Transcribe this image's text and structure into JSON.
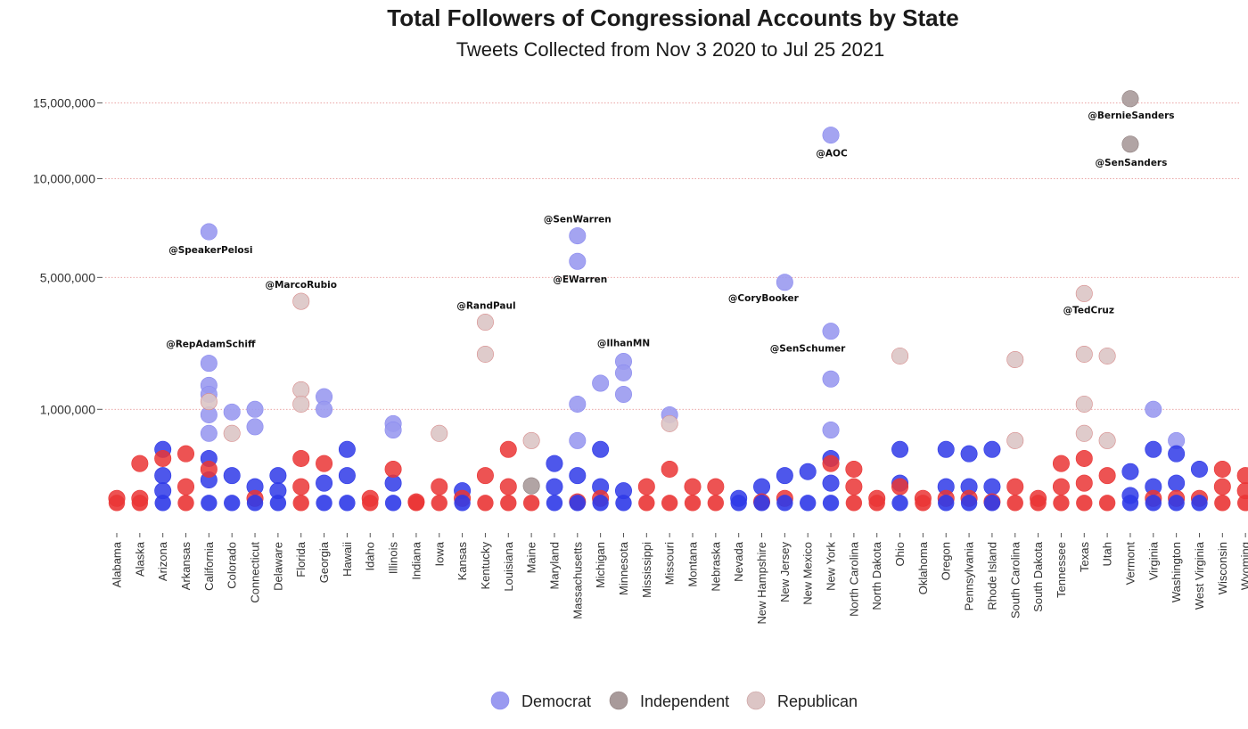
{
  "chart_data": {
    "type": "scatter",
    "title": "Total Followers of Congressional Accounts by State",
    "subtitle": "Tweets Collected from Nov 3 2020 to Jul 25 2021",
    "xlabel": "",
    "ylabel": "",
    "y_ticks": [
      1000000,
      5000000,
      10000000,
      15000000
    ],
    "y_tick_labels": [
      "1,000,000",
      "5,000,000",
      "10,000,000",
      "15,000,000"
    ],
    "y_scale": "sqrt",
    "grid": "horizontal dotted",
    "legend_position": "bottom",
    "categories": [
      "Alabama",
      "Alaska",
      "Arizona",
      "Arkansas",
      "California",
      "Colorado",
      "Connecticut",
      "Delaware",
      "Florida",
      "Georgia",
      "Hawaii",
      "Idaho",
      "Illinois",
      "Indiana",
      "Iowa",
      "Kansas",
      "Kentucky",
      "Louisiana",
      "Maine",
      "Maryland",
      "Massachusetts",
      "Michigan",
      "Minnesota",
      "Mississippi",
      "Missouri",
      "Montana",
      "Nebraska",
      "Nevada",
      "New Hampshire",
      "New Jersey",
      "New Mexico",
      "New York",
      "North Carolina",
      "North Dakota",
      "Ohio",
      "Oklahoma",
      "Oregon",
      "Pennsylvania",
      "Rhode Island",
      "South Carolina",
      "South Dakota",
      "Tennessee",
      "Texas",
      "Utah",
      "Vermont",
      "Virginia",
      "Washington",
      "West Virginia",
      "Wisconsin",
      "Wyoming"
    ],
    "party_colors": {
      "Democrat": "#9a9af0",
      "Independent": "#a89a9a",
      "Republican": "#dcc5c5",
      "Democrat_dense": "#2f3ae8",
      "Republican_dense": "#ea3535"
    },
    "series": [
      {
        "name": "Democrat",
        "points": [
          {
            "state": "Arizona",
            "y": 400000
          },
          {
            "state": "Arizona",
            "y": 150000
          },
          {
            "state": "Arizona",
            "y": 60000
          },
          {
            "state": "California",
            "y": 7100000,
            "label": "@SpeakerPelosi"
          },
          {
            "state": "California",
            "y": 2050000,
            "label": "@RepAdamSchiff"
          },
          {
            "state": "California",
            "y": 1500000
          },
          {
            "state": "California",
            "y": 1300000
          },
          {
            "state": "California",
            "y": 900000
          },
          {
            "state": "California",
            "y": 600000
          },
          {
            "state": "California",
            "y": 300000
          },
          {
            "state": "California",
            "y": 120000
          },
          {
            "state": "Colorado",
            "y": 950000
          },
          {
            "state": "Colorado",
            "y": 150000
          },
          {
            "state": "Connecticut",
            "y": 1000000
          },
          {
            "state": "Connecticut",
            "y": 700000
          },
          {
            "state": "Connecticut",
            "y": 80000
          },
          {
            "state": "Delaware",
            "y": 150000
          },
          {
            "state": "Delaware",
            "y": 60000
          },
          {
            "state": "Georgia",
            "y": 1250000
          },
          {
            "state": "Georgia",
            "y": 1000000
          },
          {
            "state": "Georgia",
            "y": 100000
          },
          {
            "state": "Hawaii",
            "y": 400000
          },
          {
            "state": "Hawaii",
            "y": 150000
          },
          {
            "state": "Illinois",
            "y": 750000
          },
          {
            "state": "Illinois",
            "y": 650000
          },
          {
            "state": "Illinois",
            "y": 100000
          },
          {
            "state": "Kansas",
            "y": 60000
          },
          {
            "state": "Maryland",
            "y": 250000
          },
          {
            "state": "Maryland",
            "y": 80000
          },
          {
            "state": "Massachusetts",
            "y": 6900000,
            "label": "@SenWarren"
          },
          {
            "state": "Massachusetts",
            "y": 5700000,
            "label": "@EWarren"
          },
          {
            "state": "Massachusetts",
            "y": 1100000
          },
          {
            "state": "Massachusetts",
            "y": 500000
          },
          {
            "state": "Massachusetts",
            "y": 150000
          },
          {
            "state": "Michigan",
            "y": 1550000
          },
          {
            "state": "Michigan",
            "y": 400000
          },
          {
            "state": "Michigan",
            "y": 80000
          },
          {
            "state": "Minnesota",
            "y": 2100000,
            "label": "@IlhanMN"
          },
          {
            "state": "Minnesota",
            "y": 1800000
          },
          {
            "state": "Minnesota",
            "y": 1300000
          },
          {
            "state": "Minnesota",
            "y": 60000
          },
          {
            "state": "Missouri",
            "y": 900000
          },
          {
            "state": "Nevada",
            "y": 30000
          },
          {
            "state": "New Hampshire",
            "y": 80000
          },
          {
            "state": "New Jersey",
            "y": 4800000,
            "label": "@CoryBooker"
          },
          {
            "state": "New Jersey",
            "y": 150000
          },
          {
            "state": "New Mexico",
            "y": 180000
          },
          {
            "state": "New York",
            "y": 12750000,
            "label": "@AOC"
          },
          {
            "state": "New York",
            "y": 3000000,
            "label": "@SenSchumer"
          },
          {
            "state": "New York",
            "y": 1650000
          },
          {
            "state": "New York",
            "y": 650000
          },
          {
            "state": "New York",
            "y": 300000
          },
          {
            "state": "New York",
            "y": 100000
          },
          {
            "state": "Ohio",
            "y": 400000
          },
          {
            "state": "Ohio",
            "y": 100000
          },
          {
            "state": "Oregon",
            "y": 400000
          },
          {
            "state": "Oregon",
            "y": 80000
          },
          {
            "state": "Pennsylvania",
            "y": 350000
          },
          {
            "state": "Pennsylvania",
            "y": 80000
          },
          {
            "state": "Rhode Island",
            "y": 400000
          },
          {
            "state": "Rhode Island",
            "y": 80000
          },
          {
            "state": "Vermont",
            "y": 180000
          },
          {
            "state": "Vermont",
            "y": 40000
          },
          {
            "state": "Virginia",
            "y": 1000000
          },
          {
            "state": "Virginia",
            "y": 400000
          },
          {
            "state": "Virginia",
            "y": 80000
          },
          {
            "state": "Washington",
            "y": 500000
          },
          {
            "state": "Washington",
            "y": 350000
          },
          {
            "state": "Washington",
            "y": 100000
          },
          {
            "state": "West Virginia",
            "y": 200000
          }
        ]
      },
      {
        "name": "Independent",
        "points": [
          {
            "state": "Vermont",
            "y": 15300000,
            "label": "@BernieSanders"
          },
          {
            "state": "Vermont",
            "y": 12150000,
            "label": "@SenSanders"
          },
          {
            "state": "Maine",
            "y": 80000
          }
        ]
      },
      {
        "name": "Republican",
        "points": [
          {
            "state": "Alabama",
            "y": 30000
          },
          {
            "state": "Alaska",
            "y": 250000
          },
          {
            "state": "Alaska",
            "y": 30000
          },
          {
            "state": "Arizona",
            "y": 300000
          },
          {
            "state": "Arkansas",
            "y": 350000
          },
          {
            "state": "Arkansas",
            "y": 80000
          },
          {
            "state": "California",
            "y": 1150000
          },
          {
            "state": "California",
            "y": 200000
          },
          {
            "state": "Colorado",
            "y": 600000
          },
          {
            "state": "Connecticut",
            "y": 30000
          },
          {
            "state": "Florida",
            "y": 4050000,
            "label": "@MarcoRubio"
          },
          {
            "state": "Florida",
            "y": 1400000
          },
          {
            "state": "Florida",
            "y": 1100000
          },
          {
            "state": "Florida",
            "y": 300000
          },
          {
            "state": "Florida",
            "y": 80000
          },
          {
            "state": "Georgia",
            "y": 250000
          },
          {
            "state": "Idaho",
            "y": 30000
          },
          {
            "state": "Illinois",
            "y": 200000
          },
          {
            "state": "Indiana",
            "y": 20000
          },
          {
            "state": "Iowa",
            "y": 600000
          },
          {
            "state": "Iowa",
            "y": 80000
          },
          {
            "state": "Kansas",
            "y": 30000
          },
          {
            "state": "Kentucky",
            "y": 3300000,
            "label": "@RandPaul"
          },
          {
            "state": "Kentucky",
            "y": 2300000
          },
          {
            "state": "Kentucky",
            "y": 150000
          },
          {
            "state": "Louisiana",
            "y": 400000
          },
          {
            "state": "Louisiana",
            "y": 80000
          },
          {
            "state": "Maine",
            "y": 500000
          },
          {
            "state": "Massachusetts",
            "y": 20000
          },
          {
            "state": "Michigan",
            "y": 30000
          },
          {
            "state": "Mississippi",
            "y": 80000
          },
          {
            "state": "Missouri",
            "y": 750000
          },
          {
            "state": "Missouri",
            "y": 200000
          },
          {
            "state": "Montana",
            "y": 80000
          },
          {
            "state": "Nebraska",
            "y": 80000
          },
          {
            "state": "New Hampshire",
            "y": 20000
          },
          {
            "state": "New Jersey",
            "y": 30000
          },
          {
            "state": "New York",
            "y": 250000
          },
          {
            "state": "North Carolina",
            "y": 200000
          },
          {
            "state": "North Carolina",
            "y": 80000
          },
          {
            "state": "North Dakota",
            "y": 30000
          },
          {
            "state": "Ohio",
            "y": 2250000
          },
          {
            "state": "Ohio",
            "y": 80000
          },
          {
            "state": "Oklahoma",
            "y": 30000
          },
          {
            "state": "Oregon",
            "y": 30000
          },
          {
            "state": "Pennsylvania",
            "y": 30000
          },
          {
            "state": "Rhode Island",
            "y": 20000
          },
          {
            "state": "South Carolina",
            "y": 2150000
          },
          {
            "state": "South Carolina",
            "y": 500000
          },
          {
            "state": "South Carolina",
            "y": 80000
          },
          {
            "state": "South Dakota",
            "y": 30000
          },
          {
            "state": "Tennessee",
            "y": 250000
          },
          {
            "state": "Tennessee",
            "y": 80000
          },
          {
            "state": "Texas",
            "y": 4350000,
            "label": "@TedCruz"
          },
          {
            "state": "Texas",
            "y": 2300000
          },
          {
            "state": "Texas",
            "y": 1100000
          },
          {
            "state": "Texas",
            "y": 600000
          },
          {
            "state": "Texas",
            "y": 300000
          },
          {
            "state": "Texas",
            "y": 100000
          },
          {
            "state": "Utah",
            "y": 2250000
          },
          {
            "state": "Utah",
            "y": 500000
          },
          {
            "state": "Utah",
            "y": 150000
          },
          {
            "state": "Virginia",
            "y": 30000
          },
          {
            "state": "Washington",
            "y": 30000
          },
          {
            "state": "West Virginia",
            "y": 30000
          },
          {
            "state": "Wisconsin",
            "y": 200000
          },
          {
            "state": "Wisconsin",
            "y": 80000
          },
          {
            "state": "Wyoming",
            "y": 150000
          },
          {
            "state": "Wyoming",
            "y": 60000
          }
        ]
      }
    ],
    "legend": [
      "Democrat",
      "Independent",
      "Republican"
    ]
  }
}
